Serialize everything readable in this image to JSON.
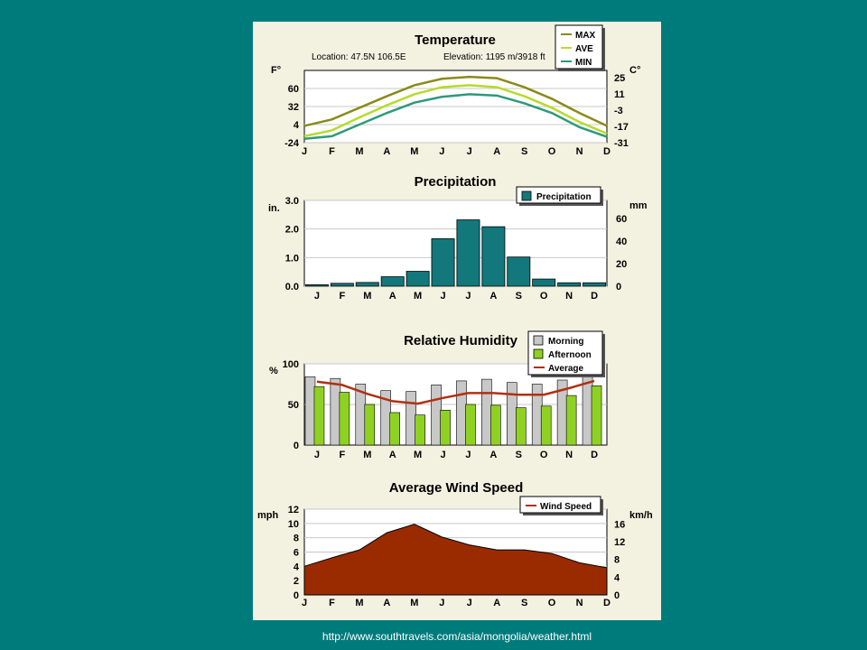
{
  "source_url": "http://www.southtravels.com/asia/mongolia/weather.html",
  "months": [
    "J",
    "F",
    "M",
    "A",
    "M",
    "J",
    "J",
    "A",
    "S",
    "O",
    "N",
    "D"
  ],
  "colors": {
    "background": "#007b7b",
    "panel": "#f3f1e0",
    "max": "#8a8a1a",
    "ave": "#b5dc2a",
    "min": "#2e9a7a",
    "precip": "#13787b",
    "morning": "#c8c8c8",
    "afternoon": "#8fd123",
    "average": "#b03010",
    "wind": "#9a2a00"
  },
  "chart_data": [
    {
      "type": "line",
      "title": "Temperature",
      "location": "Location: 47.5N 106.5E",
      "elevation": "Elevation: 1195 m/3918 ft",
      "ylabel": "F°",
      "ylabel_right": "C°",
      "yticks": [
        "60",
        "32",
        "4",
        "-24"
      ],
      "yticks_right": [
        "25",
        "11",
        "-3",
        "-17",
        "-31"
      ],
      "ylim": [
        -24,
        88
      ],
      "legend": [
        "MAX",
        "AVE",
        "MIN"
      ],
      "series": [
        {
          "name": "MAX",
          "values": [
            2,
            12,
            30,
            48,
            65,
            75,
            78,
            76,
            62,
            44,
            22,
            2
          ]
        },
        {
          "name": "AVE",
          "values": [
            -14,
            -5,
            15,
            34,
            51,
            62,
            65,
            62,
            48,
            30,
            8,
            -10
          ]
        },
        {
          "name": "MIN",
          "values": [
            -18,
            -14,
            4,
            22,
            38,
            47,
            51,
            49,
            37,
            22,
            0,
            -15
          ]
        }
      ]
    },
    {
      "type": "bar",
      "title": "Precipitation",
      "ylabel": "in.",
      "ylabel_right": "mm",
      "yticks": [
        "3.0",
        "2.0",
        "1.0",
        "0.0"
      ],
      "yticks_right": [
        "60",
        "40",
        "20",
        "0"
      ],
      "ylim": [
        0,
        3
      ],
      "legend": [
        "Precipitation"
      ],
      "series": [
        {
          "name": "Precipitation",
          "values": [
            0.05,
            0.1,
            0.13,
            0.33,
            0.52,
            1.66,
            2.32,
            2.08,
            1.02,
            0.25,
            0.12,
            0.12
          ]
        }
      ]
    },
    {
      "type": "bar",
      "title": "Relative Humidity",
      "ylabel": "%",
      "yticks": [
        "100",
        "50",
        "0"
      ],
      "ylim": [
        0,
        100
      ],
      "legend": [
        "Morning",
        "Afternoon",
        "Average"
      ],
      "series": [
        {
          "name": "Morning",
          "values": [
            84,
            82,
            75,
            67,
            66,
            74,
            79,
            81,
            77,
            75,
            80,
            84
          ]
        },
        {
          "name": "Afternoon",
          "values": [
            72,
            65,
            50,
            40,
            37,
            43,
            50,
            49,
            46,
            48,
            61,
            73
          ]
        },
        {
          "name": "Average",
          "values": [
            78,
            74,
            63,
            54,
            51,
            58,
            64,
            64,
            62,
            62,
            70,
            79
          ]
        }
      ]
    },
    {
      "type": "area",
      "title": "Average Wind Speed",
      "ylabel": "mph",
      "ylabel_right": "km/h",
      "yticks": [
        "12",
        "10",
        "8",
        "6",
        "4",
        "2",
        "0"
      ],
      "yticks_right": [
        "16",
        "12",
        "8",
        "4",
        "0"
      ],
      "ylim": [
        0,
        12
      ],
      "legend": [
        "Wind Speed"
      ],
      "series": [
        {
          "name": "Wind Speed",
          "values": [
            4.0,
            5.2,
            6.3,
            8.7,
            9.9,
            8.1,
            7.0,
            6.3,
            6.3,
            5.8,
            4.5,
            3.8
          ]
        }
      ]
    }
  ]
}
